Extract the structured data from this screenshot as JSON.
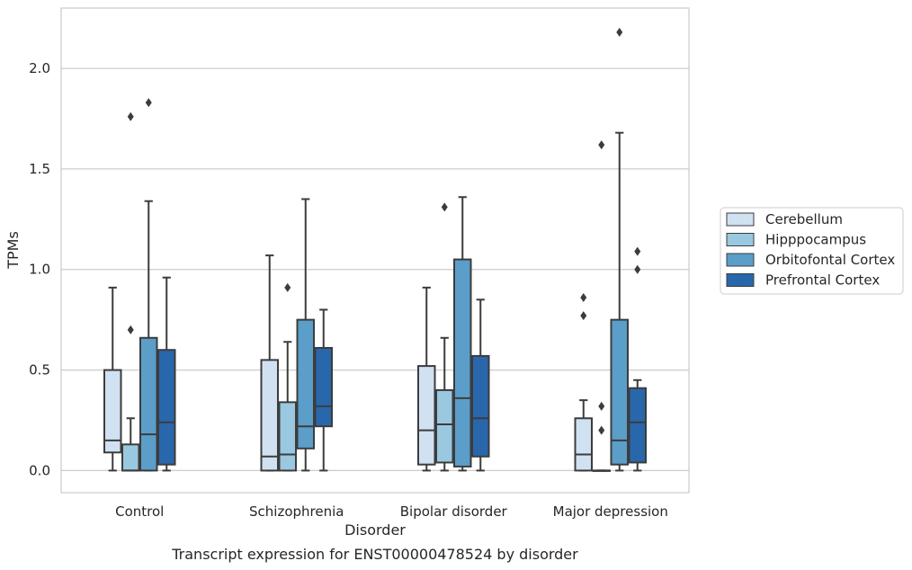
{
  "chart_data": {
    "type": "box",
    "xlabel": "Disorder",
    "ylabel": "TPMs",
    "ylim": [
      -0.11,
      2.3
    ],
    "yticks": [
      "0.0",
      "0.5",
      "1.0",
      "1.5",
      "2.0"
    ],
    "ytick_values": [
      0.0,
      0.5,
      1.0,
      1.5,
      2.0
    ],
    "grid": "horizontal",
    "legend_placement": "right",
    "categories": [
      "Control",
      "Schizophrenia",
      "Bipolar disorder",
      "Major depression"
    ],
    "series": [
      {
        "name": "Cerebellum",
        "color": "#d0e1f2",
        "boxes": [
          {
            "whisker_low": 0.0,
            "q1": 0.09,
            "median": 0.15,
            "q3": 0.5,
            "whisker_high": 0.91,
            "outliers": []
          },
          {
            "whisker_low": 0.0,
            "q1": 0.0,
            "median": 0.07,
            "q3": 0.55,
            "whisker_high": 1.07,
            "outliers": []
          },
          {
            "whisker_low": 0.0,
            "q1": 0.03,
            "median": 0.2,
            "q3": 0.52,
            "whisker_high": 0.91,
            "outliers": []
          },
          {
            "whisker_low": 0.0,
            "q1": 0.0,
            "median": 0.08,
            "q3": 0.26,
            "whisker_high": 0.35,
            "outliers": [
              0.77,
              0.86
            ]
          }
        ]
      },
      {
        "name": "Hipppocampus",
        "color": "#9ac8e0",
        "boxes": [
          {
            "whisker_low": 0.0,
            "q1": 0.0,
            "median": 0.0,
            "q3": 0.13,
            "whisker_high": 0.26,
            "outliers": [
              0.7,
              1.76
            ]
          },
          {
            "whisker_low": 0.0,
            "q1": 0.0,
            "median": 0.08,
            "q3": 0.34,
            "whisker_high": 0.64,
            "outliers": [
              0.91
            ]
          },
          {
            "whisker_low": 0.0,
            "q1": 0.04,
            "median": 0.23,
            "q3": 0.4,
            "whisker_high": 0.66,
            "outliers": [
              1.31
            ]
          },
          {
            "whisker_low": 0.0,
            "q1": 0.0,
            "median": 0.0,
            "q3": 0.0,
            "whisker_high": 0.0,
            "outliers": [
              0.2,
              0.32,
              1.62
            ]
          }
        ]
      },
      {
        "name": "Orbitofontal Cortex",
        "color": "#5b9ec9",
        "boxes": [
          {
            "whisker_low": 0.0,
            "q1": 0.0,
            "median": 0.18,
            "q3": 0.66,
            "whisker_high": 1.34,
            "outliers": [
              1.83
            ]
          },
          {
            "whisker_low": 0.0,
            "q1": 0.11,
            "median": 0.22,
            "q3": 0.75,
            "whisker_high": 1.35,
            "outliers": []
          },
          {
            "whisker_low": 0.0,
            "q1": 0.02,
            "median": 0.36,
            "q3": 1.05,
            "whisker_high": 1.36,
            "outliers": []
          },
          {
            "whisker_low": 0.0,
            "q1": 0.03,
            "median": 0.15,
            "q3": 0.75,
            "whisker_high": 1.68,
            "outliers": [
              2.18
            ]
          }
        ]
      },
      {
        "name": "Prefrontal Cortex",
        "color": "#2967ac",
        "boxes": [
          {
            "whisker_low": 0.0,
            "q1": 0.03,
            "median": 0.24,
            "q3": 0.6,
            "whisker_high": 0.96,
            "outliers": []
          },
          {
            "whisker_low": 0.0,
            "q1": 0.22,
            "median": 0.32,
            "q3": 0.61,
            "whisker_high": 0.8,
            "outliers": []
          },
          {
            "whisker_low": 0.0,
            "q1": 0.07,
            "median": 0.26,
            "q3": 0.57,
            "whisker_high": 0.85,
            "outliers": []
          },
          {
            "whisker_low": 0.0,
            "q1": 0.04,
            "median": 0.24,
            "q3": 0.41,
            "whisker_high": 0.45,
            "outliers": [
              1.0,
              1.09
            ]
          }
        ]
      }
    ],
    "caption": "Transcript expression for ENST00000478524 by disorder"
  }
}
